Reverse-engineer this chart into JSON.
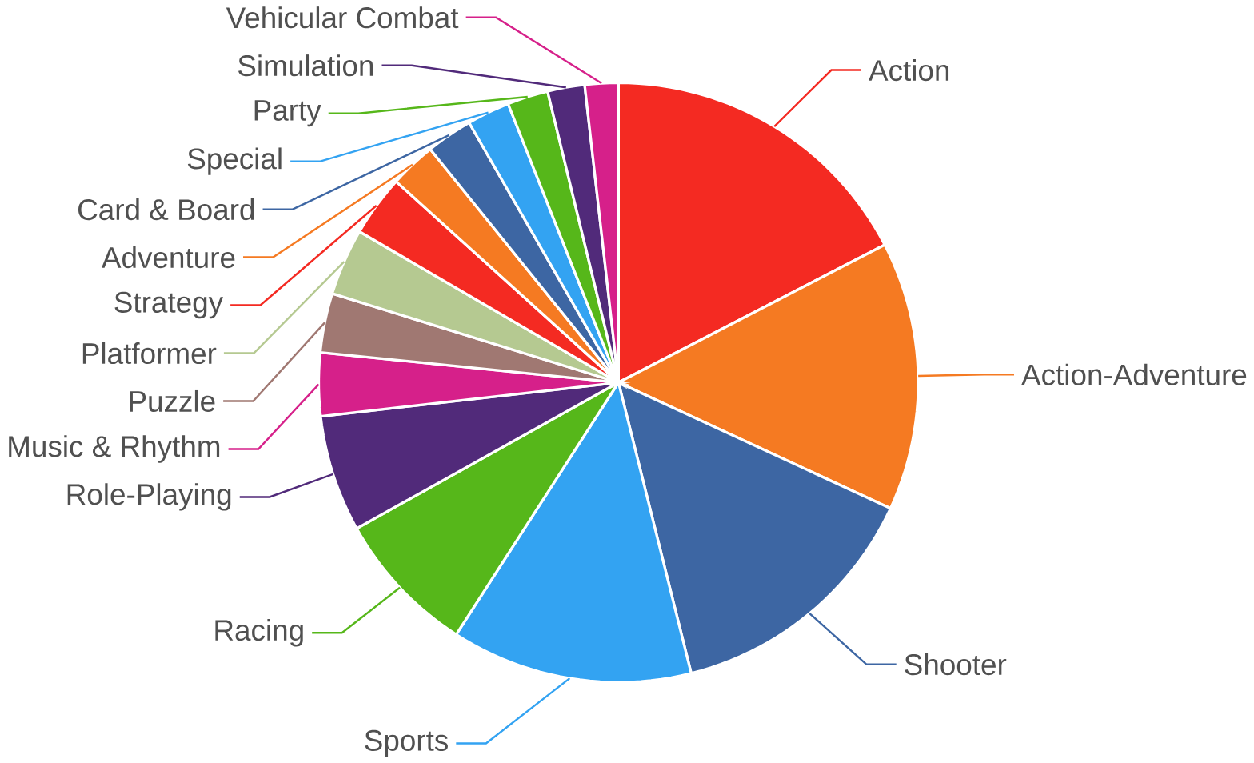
{
  "chart_data": {
    "type": "pie",
    "categories": [
      "Action",
      "Action-Adventure",
      "Shooter",
      "Sports",
      "Racing",
      "Role-Playing",
      "Music & Rhythm",
      "Puzzle",
      "Platformer",
      "Strategy",
      "Adventure",
      "Card & Board",
      "Special",
      "Party",
      "Simulation",
      "Vehicular Combat"
    ],
    "values": [
      17.4,
      14.5,
      14.2,
      13.0,
      7.8,
      6.3,
      3.4,
      3.2,
      3.6,
      3.3,
      2.5,
      2.5,
      2.3,
      2.2,
      2.0,
      1.8
    ],
    "colors": [
      "#f42a22",
      "#f57a22",
      "#3d66a3",
      "#33a3f2",
      "#56b71a",
      "#512a7a",
      "#d6208a",
      "#a07872",
      "#b5c991",
      "#f42a22",
      "#f57a22",
      "#3d66a3",
      "#33a3f2",
      "#56b71a",
      "#512a7a",
      "#d6208a"
    ]
  }
}
